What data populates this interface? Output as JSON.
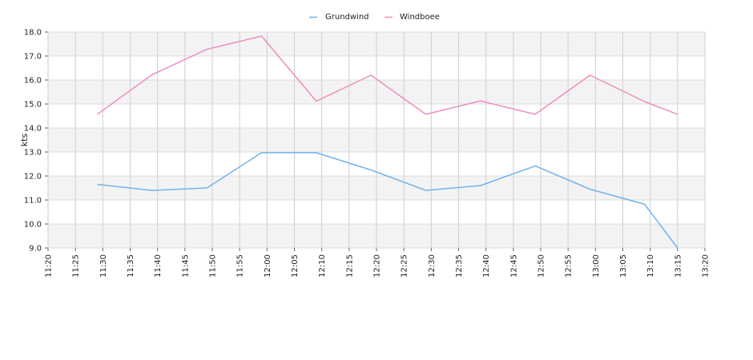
{
  "chart_data": {
    "type": "line",
    "ylabel": "kts",
    "ylim": [
      9.0,
      18.0
    ],
    "y_ticks": [
      "9.0",
      "10.0",
      "11.0",
      "12.0",
      "13.0",
      "14.0",
      "15.0",
      "16.0",
      "17.0",
      "18.0"
    ],
    "x_ticks": [
      "11:20",
      "11:25",
      "11:30",
      "11:35",
      "11:40",
      "11:45",
      "11:50",
      "11:55",
      "12:00",
      "12:05",
      "12:10",
      "12:15",
      "12:20",
      "12:25",
      "12:30",
      "12:35",
      "12:40",
      "12:45",
      "12:50",
      "12:55",
      "13:00",
      "13:05",
      "13:10",
      "13:15",
      "13:20"
    ],
    "xlim": [
      "11:20",
      "13:20"
    ],
    "grid": true,
    "legend_position": "top-center",
    "series": [
      {
        "name": "Grundwind",
        "color": "#74b2ee",
        "x": [
          "11:29",
          "11:39",
          "11:49",
          "11:59",
          "12:09",
          "12:19",
          "12:29",
          "12:39",
          "12:49",
          "12:59",
          "13:09",
          "13:15"
        ],
        "values": [
          11.65,
          11.4,
          11.5,
          12.97,
          12.97,
          12.25,
          11.4,
          11.6,
          12.42,
          11.45,
          10.82,
          9.0
        ]
      },
      {
        "name": "Windboee",
        "color": "#ee8cc2",
        "x": [
          "11:29",
          "11:39",
          "11:49",
          "11:59",
          "12:09",
          "12:19",
          "12:29",
          "12:39",
          "12:49",
          "12:59",
          "13:09",
          "13:15"
        ],
        "values": [
          14.57,
          16.22,
          17.28,
          17.83,
          15.12,
          16.2,
          14.57,
          15.13,
          14.57,
          16.2,
          15.1,
          14.57
        ]
      }
    ]
  }
}
